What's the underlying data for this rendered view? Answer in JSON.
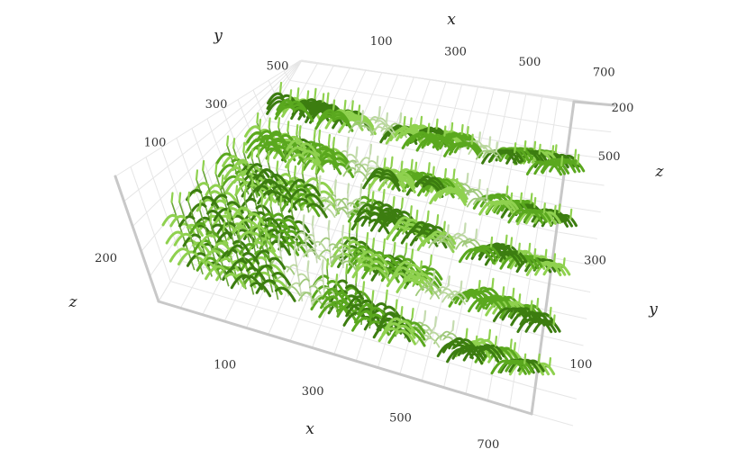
{
  "chart_data": {
    "type": "scatter",
    "subtype": "3d-plant-point-cloud",
    "title": "",
    "axes": {
      "x": {
        "label": "x",
        "ticks": [
          "100",
          "300",
          "500",
          "700"
        ],
        "range": [
          0,
          850
        ]
      },
      "y": {
        "label": "y",
        "ticks": [
          "100",
          "300",
          "500"
        ],
        "range": [
          0,
          600
        ]
      },
      "z": {
        "label": "z",
        "ticks": [
          "200"
        ],
        "range": [
          0,
          250
        ]
      }
    },
    "grid": true,
    "colors": {
      "foliage_light": "#8fd14f",
      "foliage_mid": "#5aa81e",
      "foliage_dark": "#3c7d10",
      "grid": "#e6e6e6",
      "axis": "#c8c8c8"
    },
    "series": [
      {
        "kind": "plant-rows",
        "row_y": [
          80,
          180,
          280,
          380,
          480
        ],
        "blocks": [
          {
            "x_range": [
              40,
              260
            ],
            "density": "high",
            "height": 200
          },
          {
            "x_range": [
              260,
              360
            ],
            "density": "low",
            "height": 180
          },
          {
            "x_range": [
              360,
              560
            ],
            "density": "high",
            "height": 190
          },
          {
            "x_range": [
              560,
              650
            ],
            "density": "low",
            "height": 150
          },
          {
            "x_range": [
              650,
              820
            ],
            "density": "high",
            "height": 200
          }
        ]
      }
    ]
  }
}
